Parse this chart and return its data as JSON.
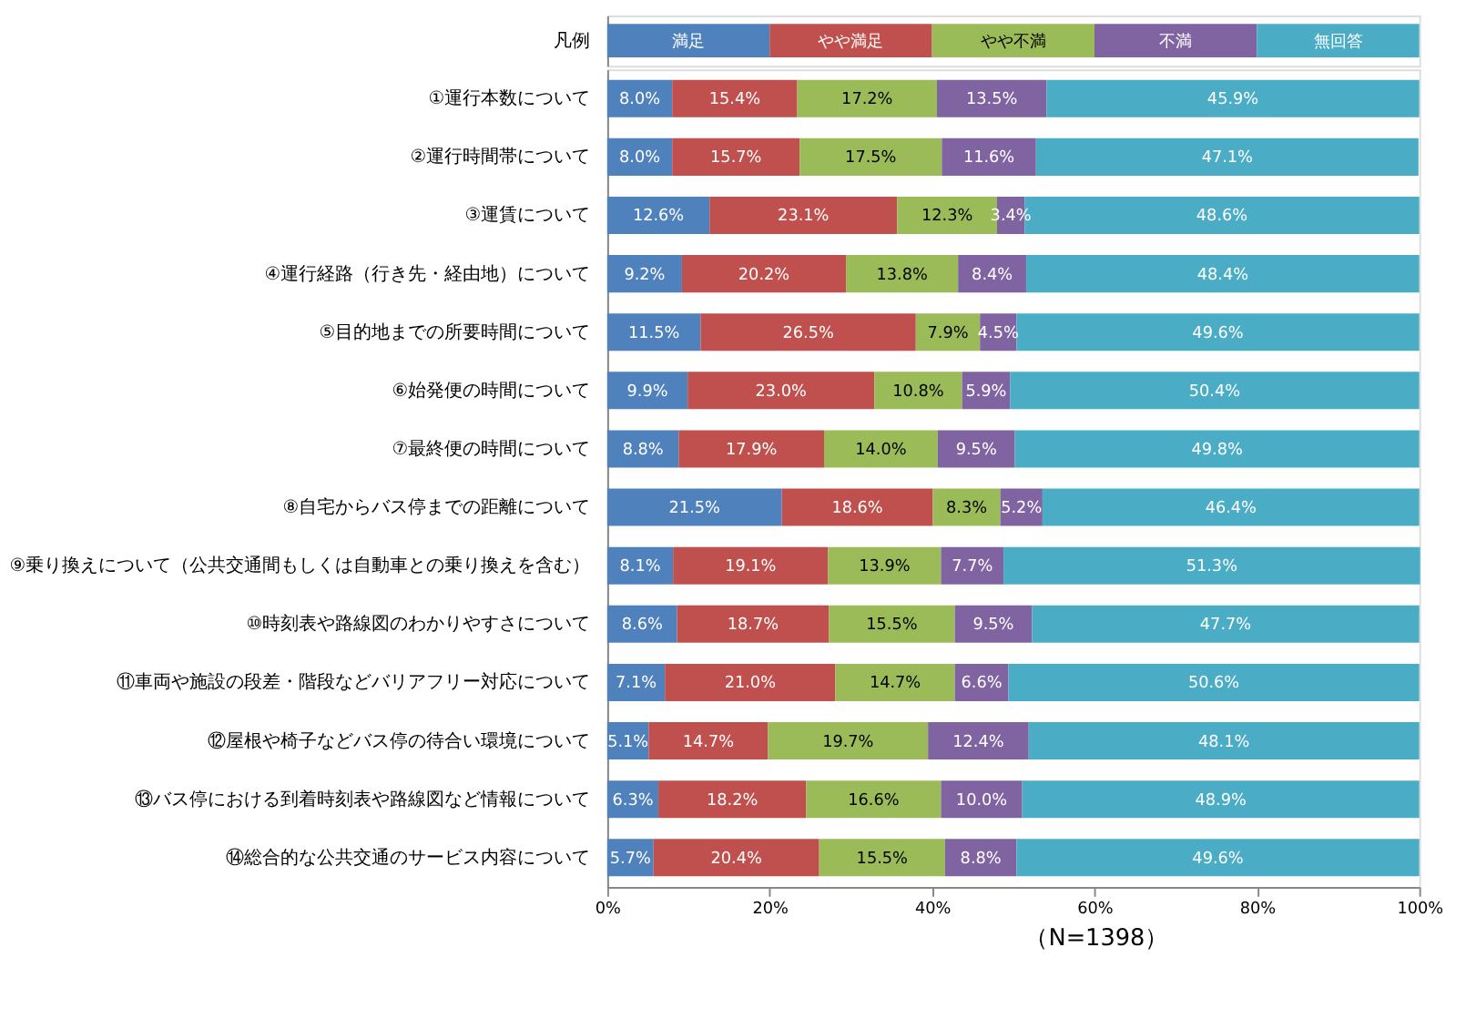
{
  "chart_data": {
    "type": "bar",
    "orientation": "horizontal",
    "stacked": true,
    "legend_title": "凡例",
    "categories": [
      "①運行本数について",
      "②運行時間帯について",
      "③運賃について",
      "④運行経路（行き先・経由地）について",
      "⑤目的地までの所要時間について",
      "⑥始発便の時間について",
      "⑦最終便の時間について",
      "⑧自宅からバス停までの距離について",
      "⑨乗り換えについて（公共交通間もしくは自動車との乗り換えを含む）",
      "⑩時刻表や路線図のわかりやすさについて",
      "⑪車両や施設の段差・階段などバリアフリー対応について",
      "⑫屋根や椅子などバス停の待合い環境について",
      "⑬バス停における到着時刻表や路線図など情報について",
      "⑭総合的な公共交通のサービス内容について"
    ],
    "series": [
      {
        "name": "満足",
        "color": "#4f81bd",
        "values": [
          8.0,
          8.0,
          12.6,
          9.2,
          11.5,
          9.9,
          8.8,
          21.5,
          8.1,
          8.6,
          7.1,
          5.1,
          6.3,
          5.7
        ],
        "value_labels": [
          "8.0%",
          "8.0%",
          "12.6%",
          "9.2%",
          "11.5%",
          "9.9%",
          "8.8%",
          "21.5%",
          "8.1%",
          "8.6%",
          "7.1%",
          "5.1%",
          "6.3%",
          "5.7%"
        ]
      },
      {
        "name": "やや満足",
        "color": "#c0504d",
        "values": [
          15.4,
          15.7,
          23.1,
          20.2,
          26.5,
          23.0,
          17.9,
          18.6,
          19.1,
          18.7,
          21.0,
          14.7,
          18.2,
          20.4
        ],
        "value_labels": [
          "15.4%",
          "15.7%",
          "23.1%",
          "20.2%",
          "26.5%",
          "23.0%",
          "17.9%",
          "18.6%",
          "19.1%",
          "18.7%",
          "21.0%",
          "14.7%",
          "18.2%",
          "20.4%"
        ]
      },
      {
        "name": "やや不満",
        "color": "#9bbb59",
        "values": [
          17.2,
          17.5,
          12.3,
          13.8,
          7.9,
          10.8,
          14.0,
          8.3,
          13.9,
          15.5,
          14.7,
          19.7,
          16.6,
          15.5
        ],
        "value_labels": [
          "17.2%",
          "17.5%",
          "12.3%",
          "13.8%",
          "7.9%",
          "10.8%",
          "14.0%",
          "8.3%",
          "13.9%",
          "15.5%",
          "14.7%",
          "19.7%",
          "16.6%",
          "15.5%"
        ]
      },
      {
        "name": "不満",
        "color": "#8064a2",
        "values": [
          13.5,
          11.6,
          3.4,
          8.4,
          4.5,
          5.9,
          9.5,
          5.2,
          7.7,
          9.5,
          6.6,
          12.4,
          10.0,
          8.8
        ],
        "value_labels": [
          "13.5%",
          "11.6%",
          "3.4%",
          "8.4%",
          "4.5%",
          "5.9%",
          "9.5%",
          "5.2%",
          "7.7%",
          "9.5%",
          "6.6%",
          "12.4%",
          "10.0%",
          "8.8%"
        ]
      },
      {
        "name": "無回答",
        "color": "#4bacc6",
        "values": [
          45.9,
          47.1,
          48.6,
          48.4,
          49.6,
          50.4,
          49.8,
          46.4,
          51.3,
          47.7,
          50.6,
          48.1,
          48.9,
          49.6
        ],
        "value_labels": [
          "45.9%",
          "47.1%",
          "48.6%",
          "48.4%",
          "49.6%",
          "50.4%",
          "49.8%",
          "46.4%",
          "51.3%",
          "47.7%",
          "50.6%",
          "48.1%",
          "48.9%",
          "49.6%"
        ]
      }
    ],
    "xlim": [
      0,
      100
    ],
    "xticks": [
      {
        "value": 0,
        "label": "0%"
      },
      {
        "value": 20,
        "label": "20%"
      },
      {
        "value": 40,
        "label": "40%"
      },
      {
        "value": 60,
        "label": "60%"
      },
      {
        "value": 80,
        "label": "80%"
      },
      {
        "value": 100,
        "label": "100%"
      }
    ],
    "grid": false,
    "legend": "top",
    "annotations": [
      "（N=1398）"
    ]
  }
}
